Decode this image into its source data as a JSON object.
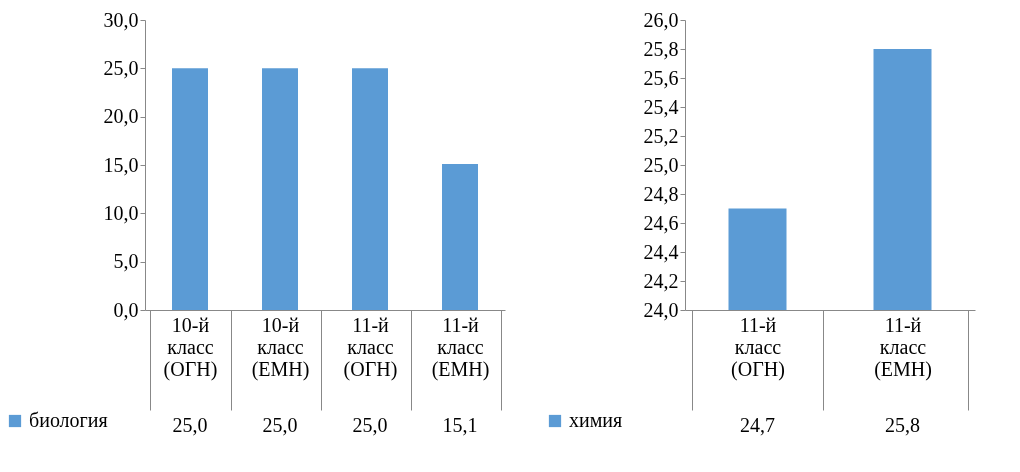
{
  "chart_data": [
    {
      "type": "bar",
      "categories": [
        "10-й класс (ОГН)",
        "10-й класс (ЕМН)",
        "11-й класс (ОГН)",
        "11-й класс (ЕМН)"
      ],
      "series": [
        {
          "name": "биология",
          "color": "#5b9bd5",
          "values": [
            25.0,
            25.0,
            25.0,
            15.1
          ],
          "value_labels": [
            "25,0",
            "25,0",
            "25,0",
            "15,1"
          ]
        }
      ],
      "ylim": [
        0,
        30
      ],
      "yticks": [
        {
          "value": 0,
          "label": "0,0"
        },
        {
          "value": 5,
          "label": "5,0"
        },
        {
          "value": 10,
          "label": "10,0"
        },
        {
          "value": 15,
          "label": "15,0"
        },
        {
          "value": 20,
          "label": "20,0"
        },
        {
          "value": 25,
          "label": "25,0"
        },
        {
          "value": 30,
          "label": "30,0"
        }
      ],
      "grid": false,
      "legend": "bottom left"
    },
    {
      "type": "bar",
      "categories": [
        "11-й класс (ОГН)",
        "11-й класс (ЕМН)"
      ],
      "series": [
        {
          "name": "химия",
          "color": "#5b9bd5",
          "values": [
            24.7,
            25.8
          ],
          "value_labels": [
            "24,7",
            "25,8"
          ]
        }
      ],
      "ylim": [
        24,
        26
      ],
      "yticks": [
        {
          "value": 24,
          "label": "24,0"
        },
        {
          "value": 24.2,
          "label": "24,2"
        },
        {
          "value": 24.4,
          "label": "24,4"
        },
        {
          "value": 24.6,
          "label": "24,6"
        },
        {
          "value": 24.8,
          "label": "24,8"
        },
        {
          "value": 25,
          "label": "25,0"
        },
        {
          "value": 25.2,
          "label": "25,2"
        },
        {
          "value": 25.4,
          "label": "25,4"
        },
        {
          "value": 25.6,
          "label": "25,6"
        },
        {
          "value": 25.8,
          "label": "25,8"
        },
        {
          "value": 26,
          "label": "26,0"
        }
      ],
      "grid": false,
      "legend": "bottom left"
    }
  ]
}
